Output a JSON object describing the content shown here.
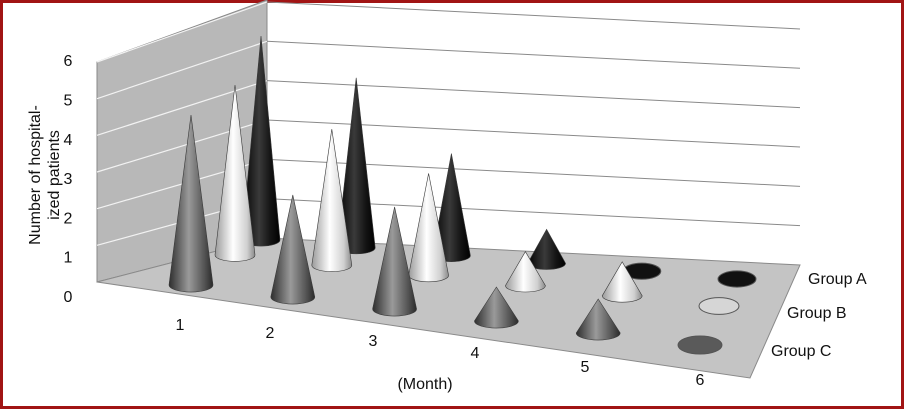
{
  "chart_data": {
    "type": "bar",
    "title": "",
    "xlabel": "(Month)",
    "ylabel_lines": [
      "Number of hospital-",
      "ized patients"
    ],
    "ylim": [
      0,
      6
    ],
    "yticks": [
      "0",
      "1",
      "2",
      "3",
      "4",
      "5",
      "6"
    ],
    "categories": [
      "1",
      "2",
      "3",
      "4",
      "5",
      "6"
    ],
    "series_labels": [
      "Group A",
      "Group B",
      "Group C"
    ],
    "series": [
      {
        "name": "Group A",
        "values": [
          6,
          5,
          3,
          1,
          0,
          0
        ]
      },
      {
        "name": "Group B",
        "values": [
          5,
          4,
          3,
          1,
          1,
          0
        ]
      },
      {
        "name": "Group C",
        "values": [
          5,
          3,
          3,
          1,
          1,
          0
        ]
      }
    ],
    "mark_shape": "cone",
    "grid": true,
    "colors": {
      "Group A": "#111111",
      "Group B": "#d6d6d6",
      "Group C": "#5a5a5a"
    }
  }
}
